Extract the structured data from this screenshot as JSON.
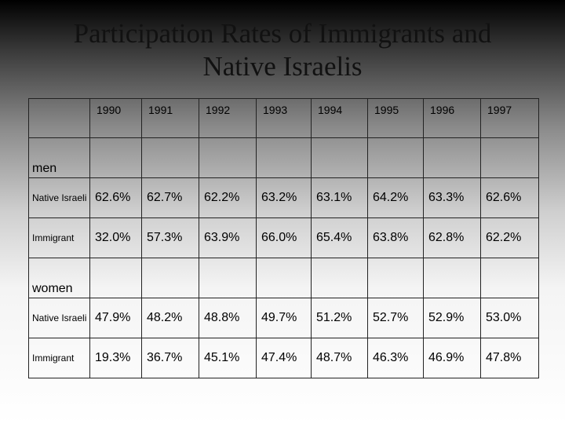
{
  "title": {
    "line1": "Participation Rates of Immigrants and",
    "line2": "Native Israelis"
  },
  "table": {
    "years": [
      "1990",
      "1991",
      "1992",
      "1993",
      "1994",
      "1995",
      "1996",
      "1997"
    ],
    "sections": [
      {
        "label": "men",
        "rows": [
          {
            "label": "Native Israeli",
            "values": [
              "62.6%",
              "62.7%",
              "62.2%",
              "63.2%",
              "63.1%",
              "64.2%",
              "63.3%",
              "62.6%"
            ]
          },
          {
            "label": "Immigrant",
            "values": [
              "32.0%",
              "57.3%",
              "63.9%",
              "66.0%",
              "65.4%",
              "63.8%",
              "62.8%",
              "62.2%"
            ]
          }
        ]
      },
      {
        "label": "women",
        "rows": [
          {
            "label": "Native Israeli",
            "values": [
              "47.9%",
              "48.2%",
              "48.8%",
              "49.7%",
              "51.2%",
              "52.7%",
              "52.9%",
              "53.0%"
            ]
          },
          {
            "label": "Immigrant",
            "values": [
              "19.3%",
              "36.7%",
              "45.1%",
              "47.4%",
              "48.7%",
              "46.3%",
              "46.9%",
              "47.8%"
            ]
          }
        ]
      }
    ]
  }
}
